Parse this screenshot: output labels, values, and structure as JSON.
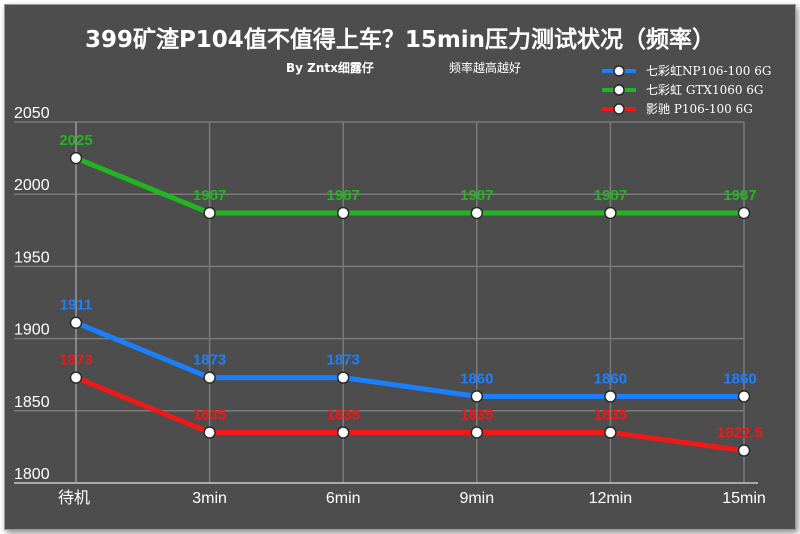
{
  "chart_data": {
    "type": "line",
    "title": "399矿渣P104值不值得上车？15min压力测试状况（频率）",
    "byline": "By  Zntx细露仔",
    "note": "频率越高越好",
    "categories": [
      "待机",
      "3min",
      "6min",
      "9min",
      "12min",
      "15min"
    ],
    "ylim": [
      1800,
      2050
    ],
    "yticks": [
      1800,
      1850,
      1900,
      1950,
      2000,
      2050
    ],
    "grid": true,
    "legend_position": "top-right",
    "series": [
      {
        "name": "七彩虹NP106-100 6G",
        "color": "#1a80ff",
        "values": [
          1911,
          1873,
          1873,
          1860,
          1860,
          1860
        ],
        "labels": [
          "1911",
          "1873",
          "1873",
          "1860",
          "1860",
          "1860"
        ]
      },
      {
        "name": "七彩虹 GTX1060 6G",
        "color": "#22b522",
        "values": [
          2025,
          1987,
          1987,
          1987,
          1987,
          1987
        ],
        "labels": [
          "2025",
          "1987",
          "1987",
          "1987",
          "1987",
          "1987"
        ]
      },
      {
        "name": "影驰 P106-100 6G",
        "color": "#f01818",
        "values": [
          1873,
          1835,
          1835,
          1835,
          1835,
          1822.5
        ],
        "labels": [
          "1873",
          "1835",
          "1835",
          "1835",
          "1835",
          "1822.5"
        ]
      }
    ]
  }
}
